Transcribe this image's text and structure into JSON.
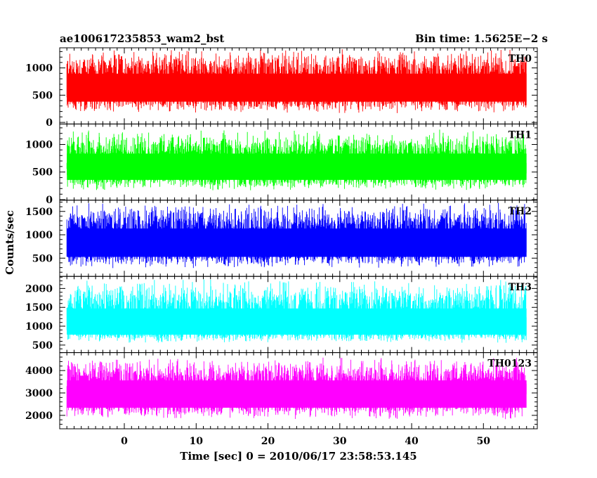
{
  "header": {
    "title": "ae100617235853_wam2_bst",
    "bin_time": "Bin time: 1.5625E−2 s"
  },
  "chart_data": {
    "type": "line",
    "xlabel": "Time [sec] 0 = 2010/06/17 23:58:53.145",
    "ylabel": "Counts/sec",
    "xlim": [
      -9,
      57.5
    ],
    "x_ticks": [
      0,
      10,
      20,
      30,
      40,
      50
    ],
    "x_range": [
      -8,
      56
    ],
    "panels": [
      {
        "name": "TH0",
        "color": "#ff0000",
        "ylim": [
          -30,
          1370
        ],
        "y_ticks": [
          0,
          500,
          1000
        ],
        "mean": 650,
        "low": 160,
        "high": 1350
      },
      {
        "name": "TH1",
        "color": "#00ff00",
        "ylim": [
          -10,
          1370
        ],
        "y_ticks": [
          0,
          500,
          1000
        ],
        "mean": 600,
        "low": 160,
        "high": 1270
      },
      {
        "name": "TH2",
        "color": "#0000ff",
        "ylim": [
          110,
          1740
        ],
        "y_ticks": [
          500,
          1000,
          1500
        ],
        "mean": 830,
        "low": 280,
        "high": 1700
      },
      {
        "name": "TH3",
        "color": "#00ffff",
        "ylim": [
          300,
          2320
        ],
        "y_ticks": [
          500,
          1000,
          1500,
          2000
        ],
        "mean": 1050,
        "low": 550,
        "high": 2250
      },
      {
        "name": "TH0123",
        "color": "#ff00ff",
        "ylim": [
          1400,
          4800
        ],
        "y_ticks": [
          2000,
          3000,
          4000
        ],
        "mean": 3000,
        "low": 1800,
        "high": 4600
      }
    ]
  }
}
